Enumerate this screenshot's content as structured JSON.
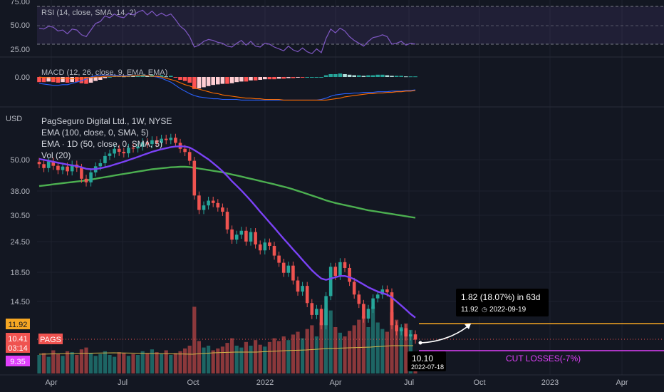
{
  "colors": {
    "background": "#131722",
    "up": "#26a69a",
    "down": "#ef5350",
    "ema100": "#4caf50",
    "ema50": "#7b42f6",
    "rsi": "#7e57c2",
    "macd": "#2962ff",
    "signal": "#ff6d00",
    "projection": "#f5a623",
    "cut_losses": "#e040fb",
    "text": "#d1d4dc",
    "label_bg": "#000000"
  },
  "rsi_panel": {
    "legend": "RSI (14, close, SMA, 14, 2)",
    "ticks": [
      "75.00",
      "50.00",
      "25.00"
    ]
  },
  "macd_panel": {
    "legend": "MACD (12, 26, close, 9, EMA, EMA)",
    "ticks": [
      "0.00"
    ]
  },
  "price_panel": {
    "currency": "USD",
    "title": "PagSeguro Digital Ltd., 1W, NYSE",
    "legend": [
      "EMA (100, close, 0, SMA, 5)",
      "EMA · 1D (50, close, 0, SMA, 5)",
      "Vol (20)"
    ],
    "ticks": [
      "50.00",
      "38.00",
      "30.50",
      "24.50",
      "18.50",
      "14.50"
    ],
    "projection_price": "11.92",
    "last_price": "10.41",
    "countdown": "03:14",
    "symbol": "PAGS",
    "cut_price": "9.35",
    "cut_label": "CUT LOSSES(-7%)",
    "measure": {
      "line1": "1.82 (18.07%) in 63d",
      "price": "11.92",
      "date": "2022-09-19"
    },
    "cursor": {
      "price": "10.10",
      "date": "2022-07-18"
    }
  },
  "time_axis": [
    "Apr",
    "Jul",
    "Oct",
    "2022",
    "Apr",
    "Jul",
    "Oct",
    "2023",
    "Apr"
  ],
  "chart_data": {
    "type": "candlestick",
    "interval": "1W",
    "start_week": "2021-03-01",
    "price_scale": "log",
    "price_ticks": [
      50.0,
      38.0,
      30.5,
      24.5,
      18.5,
      14.5
    ],
    "close": [
      47.8,
      46.2,
      48.9,
      47.1,
      45.4,
      46.8,
      44.9,
      47.6,
      46.3,
      42.1,
      40.8,
      44.5,
      46.9,
      48.2,
      51.3,
      52.4,
      54.6,
      53.2,
      52.5,
      55.1,
      54.8,
      55.7,
      57.8,
      56.9,
      58.8,
      57.4,
      59.6,
      58.9,
      60.1,
      57.5,
      54.6,
      53.1,
      49.2,
      36.4,
      32.1,
      33.4,
      34.8,
      34.1,
      32.8,
      31.6,
      27.1,
      24.8,
      25.9,
      26.8,
      24.4,
      26.5,
      23.8,
      22.6,
      24.2,
      23.5,
      21.6,
      20.3,
      18.6,
      19.8,
      17.4,
      15.8,
      16.6,
      14.3,
      12.9,
      13.6,
      11.8,
      15.2,
      19.6,
      18.1,
      20.4,
      19.4,
      17.2,
      15.4,
      14.2,
      12.5,
      13.6,
      14.9,
      15.4,
      16.1,
      15.7,
      11.8,
      11.2,
      11.5,
      10.7,
      10.9,
      10.41
    ],
    "ema100": [
      39.5,
      39.7,
      39.9,
      40.1,
      40.3,
      40.5,
      40.7,
      40.9,
      41.1,
      41.3,
      41.5,
      41.8,
      42.1,
      42.4,
      42.7,
      43.0,
      43.3,
      43.6,
      43.9,
      44.2,
      44.5,
      44.8,
      45.1,
      45.4,
      45.7,
      45.9,
      46.1,
      46.3,
      46.5,
      46.6,
      46.7,
      46.7,
      46.6,
      46.3,
      46.0,
      45.7,
      45.4,
      45.1,
      44.8,
      44.5,
      44.1,
      43.7,
      43.3,
      42.9,
      42.5,
      42.1,
      41.7,
      41.3,
      40.9,
      40.5,
      40.1,
      39.7,
      39.3,
      38.9,
      38.4,
      37.9,
      37.4,
      36.9,
      36.4,
      35.9,
      35.4,
      34.9,
      34.5,
      34.1,
      33.8,
      33.5,
      33.2,
      32.9,
      32.6,
      32.3,
      32.0,
      31.8,
      31.6,
      31.4,
      31.2,
      31.0,
      30.8,
      30.6,
      30.4,
      30.2,
      30.0
    ],
    "ema50": [
      50.0,
      49.6,
      49.2,
      48.8,
      48.4,
      48.0,
      47.6,
      47.3,
      47.0,
      46.5,
      45.9,
      45.7,
      45.8,
      46.1,
      46.5,
      47.0,
      47.6,
      48.2,
      48.8,
      49.5,
      50.2,
      50.9,
      51.7,
      52.4,
      53.2,
      53.8,
      54.4,
      54.9,
      55.4,
      55.7,
      55.8,
      55.7,
      55.2,
      54.0,
      52.6,
      51.2,
      49.8,
      48.2,
      46.6,
      44.9,
      43.1,
      41.2,
      39.6,
      38.0,
      36.4,
      34.8,
      33.2,
      31.6,
      30.2,
      28.8,
      27.5,
      26.2,
      25.0,
      23.9,
      22.8,
      21.8,
      20.8,
      19.9,
      19.0,
      18.3,
      17.7,
      17.5,
      17.7,
      17.9,
      18.1,
      18.1,
      17.9,
      17.6,
      17.2,
      16.8,
      16.4,
      16.1,
      15.8,
      15.6,
      15.4,
      15.0,
      14.5,
      14.0,
      13.5,
      13.0,
      12.6
    ],
    "volume": [
      20,
      22,
      18,
      25,
      21,
      19,
      24,
      23,
      20,
      26,
      28,
      22,
      19,
      21,
      24,
      20,
      18,
      23,
      22,
      19,
      21,
      20,
      24,
      22,
      26,
      23,
      21,
      25,
      20,
      22,
      24,
      27,
      30,
      72,
      35,
      28,
      30,
      25,
      27,
      29,
      33,
      38,
      30,
      28,
      34,
      30,
      36,
      31,
      29,
      34,
      38,
      35,
      40,
      36,
      42,
      45,
      38,
      48,
      52,
      40,
      55,
      70,
      68,
      50,
      44,
      40,
      46,
      52,
      58,
      62,
      50,
      72,
      55,
      48,
      45,
      66,
      58,
      50,
      54,
      47,
      15
    ],
    "ema_labels": [
      "EMA 100",
      "EMA 50 (1D)"
    ],
    "projection": {
      "from": 10.1,
      "to": 11.92,
      "change": 1.82,
      "change_pct": 18.07,
      "days": 63,
      "target_date": "2022-09-19"
    },
    "cut_losses_level": 9.35,
    "rsi": [
      47,
      46,
      49,
      48,
      44,
      45,
      41,
      46,
      45,
      40,
      38,
      45,
      52,
      54,
      60,
      58,
      62,
      59,
      58,
      63,
      61,
      64,
      66,
      61,
      65,
      60,
      63,
      60,
      62,
      56,
      49,
      45,
      38,
      27,
      29,
      33,
      35,
      34,
      32,
      31,
      28,
      27,
      31,
      34,
      29,
      33,
      28,
      27,
      31,
      30,
      27,
      25,
      23,
      28,
      24,
      22,
      26,
      22,
      20,
      25,
      21,
      36,
      46,
      42,
      47,
      44,
      38,
      34,
      31,
      28,
      33,
      37,
      38,
      40,
      38,
      30,
      31,
      33,
      29,
      31,
      30
    ],
    "rsi_levels": [
      70,
      50,
      30
    ],
    "macd_hist": [
      -0.9,
      -0.9,
      -0.8,
      -0.9,
      -1.0,
      -0.9,
      -1.0,
      -0.9,
      -0.9,
      -1.1,
      -1.2,
      -1.0,
      -0.7,
      -0.5,
      -0.2,
      0.0,
      0.2,
      0.2,
      0.1,
      0.3,
      0.2,
      0.3,
      0.4,
      0.2,
      0.4,
      0.2,
      0.3,
      0.1,
      0.2,
      -0.1,
      -0.5,
      -0.7,
      -1.0,
      -2.1,
      -2.0,
      -1.8,
      -1.6,
      -1.4,
      -1.3,
      -1.2,
      -1.2,
      -1.1,
      -0.9,
      -0.8,
      -0.8,
      -0.6,
      -0.6,
      -0.5,
      -0.4,
      -0.4,
      -0.4,
      -0.3,
      -0.3,
      -0.2,
      -0.2,
      -0.1,
      -0.1,
      0.0,
      0.0,
      0.0,
      0.0,
      0.3,
      0.5,
      0.5,
      0.6,
      0.5,
      0.4,
      0.3,
      0.3,
      0.2,
      0.3,
      0.3,
      0.4,
      0.4,
      0.3,
      0.2,
      0.2,
      0.2,
      0.1,
      0.1,
      0.1
    ],
    "macd_line": [
      -1.0,
      -1.1,
      -1.2,
      -1.3,
      -1.3,
      -1.2,
      -1.2,
      -1.0,
      -0.8,
      -0.6,
      -0.3,
      0.0,
      0.2,
      0.3,
      0.3,
      0.3,
      0.3,
      0.2,
      0.2,
      0.2,
      0.2,
      0.2,
      0.2,
      0.2,
      0.1,
      0.0,
      -0.2,
      -0.5,
      -0.8,
      -1.3,
      -1.8,
      -2.2,
      -2.6,
      -2.9,
      -3.1,
      -3.2,
      -3.3,
      -3.4,
      -3.4,
      -3.5,
      -3.5,
      -3.5,
      -3.5,
      -3.6,
      -3.6,
      -3.6,
      -3.6,
      -3.6,
      -3.6,
      -3.6,
      -3.6,
      -3.6,
      -3.6,
      -3.6,
      -3.6,
      -3.6,
      -3.6,
      -3.6,
      -3.6,
      -3.6,
      -3.5,
      -3.3,
      -3.0,
      -2.8,
      -2.7,
      -2.6,
      -2.6,
      -2.5,
      -2.5,
      -2.4,
      -2.4,
      -2.4,
      -2.3,
      -2.3,
      -2.3,
      -2.2,
      -2.2,
      -2.2,
      -2.1,
      -2.1,
      -2.0
    ],
    "signal_line": [
      0.0,
      -0.1,
      -0.1,
      -0.2,
      -0.2,
      -0.2,
      -0.2,
      -0.3,
      -0.2,
      -0.2,
      -0.1,
      -0.1,
      0.0,
      0.0,
      0.1,
      0.1,
      0.1,
      0.1,
      0.1,
      0.1,
      0.2,
      0.2,
      0.2,
      0.2,
      0.1,
      0.1,
      0.0,
      -0.2,
      -0.4,
      -0.6,
      -0.9,
      -1.2,
      -1.4,
      -1.7,
      -1.9,
      -2.1,
      -2.3,
      -2.5,
      -2.6,
      -2.8,
      -2.9,
      -3.0,
      -3.1,
      -3.2,
      -3.3,
      -3.3,
      -3.4,
      -3.4,
      -3.5,
      -3.5,
      -3.5,
      -3.5,
      -3.6,
      -3.6,
      -3.6,
      -3.6,
      -3.6,
      -3.6,
      -3.6,
      -3.6,
      -3.6,
      -3.6,
      -3.5,
      -3.4,
      -3.3,
      -3.1,
      -3.0,
      -2.9,
      -2.8,
      -2.7,
      -2.6,
      -2.6,
      -2.5,
      -2.5,
      -2.4,
      -2.4,
      -2.3,
      -2.3,
      -2.2,
      -2.2,
      -2.1
    ]
  }
}
